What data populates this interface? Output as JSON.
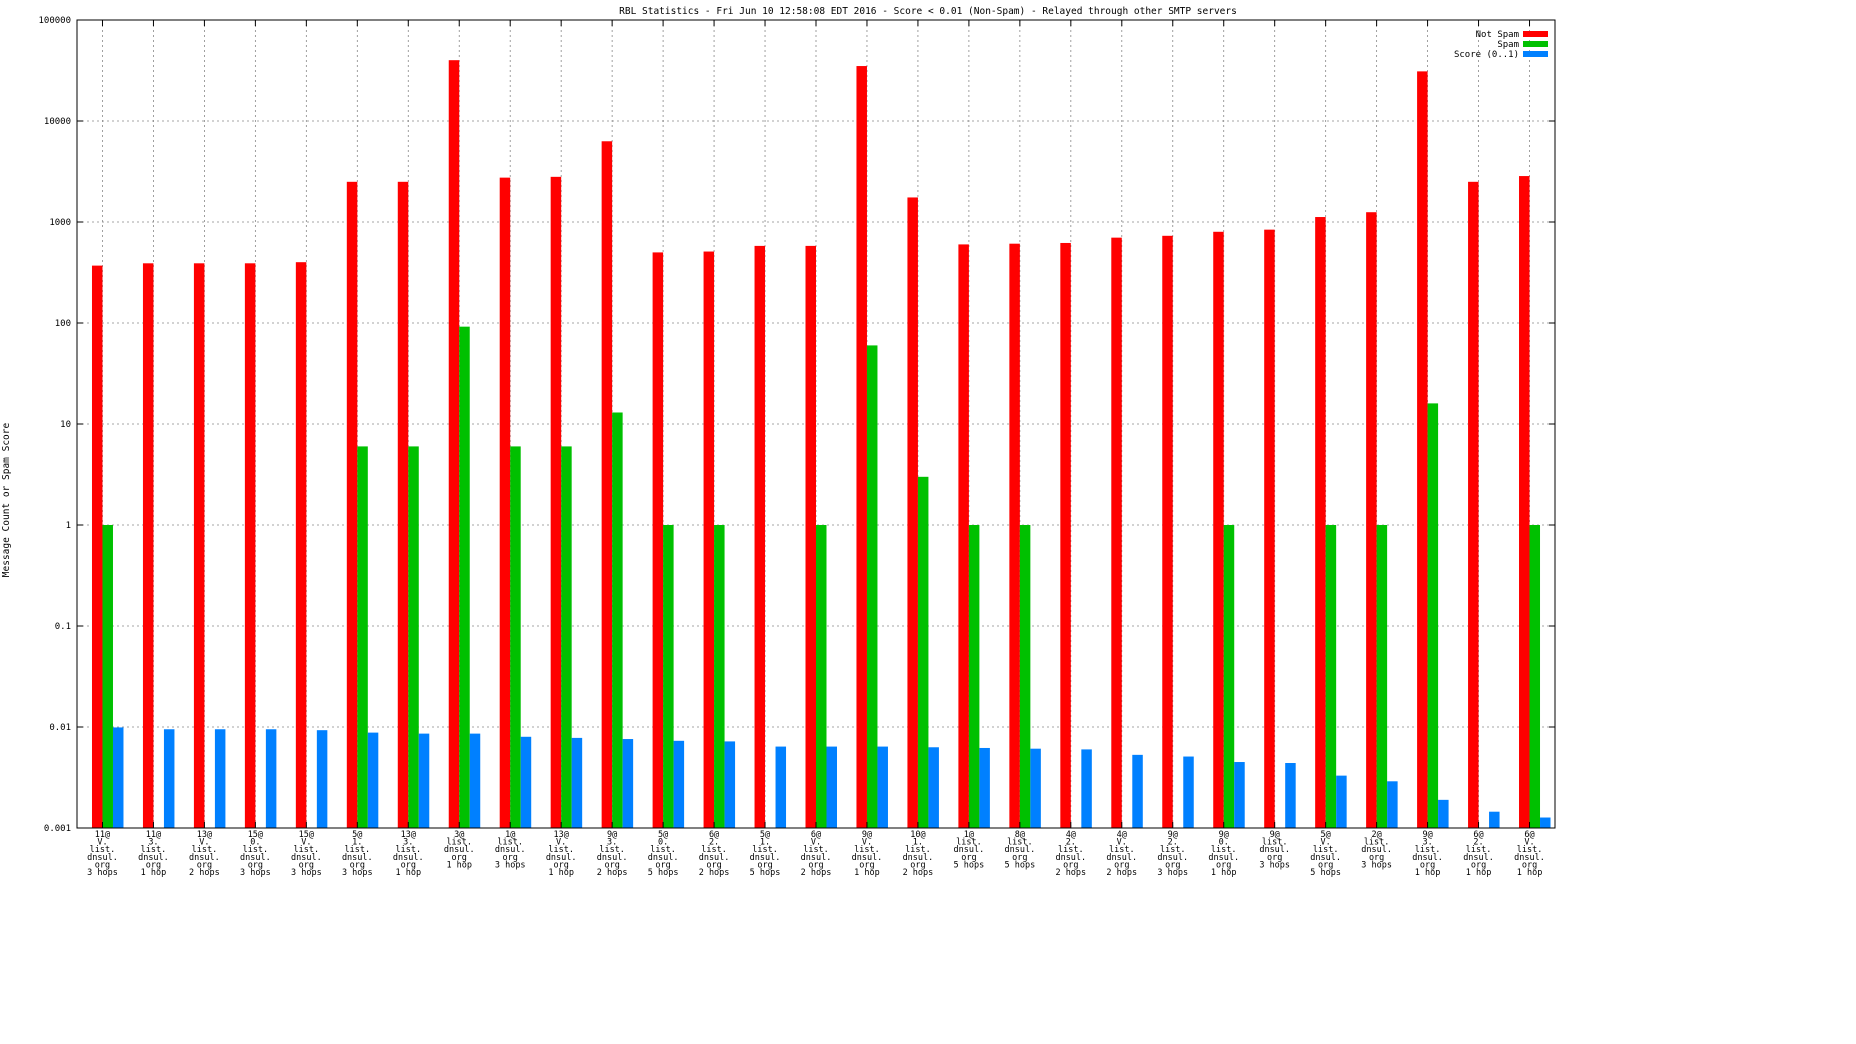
{
  "chart_data": {
    "type": "bar",
    "title": "RBL Statistics - Fri Jun 10 12:58:08 EDT 2016 - Score < 0.01 (Non-Spam) - Relayed through other SMTP servers",
    "xlabel": "",
    "ylabel": "Message Count or Spam Score",
    "yscale": "log",
    "ylim": [
      0.001,
      100000
    ],
    "yticks": [
      "0.001",
      "0.01",
      "0.1",
      "1",
      "10",
      "100",
      "1000",
      "10000",
      "100000"
    ],
    "grid": true,
    "legend_position": "top-right",
    "categories": [
      [
        "11@",
        "V.",
        "list.",
        "dnsul.",
        "org",
        "3 hops"
      ],
      [
        "11@",
        "3.",
        "list.",
        "dnsul.",
        "org",
        "1 hop"
      ],
      [
        "13@",
        "V.",
        "list.",
        "dnsul.",
        "org",
        "2 hops"
      ],
      [
        "15@",
        "0.",
        "list.",
        "dnsul.",
        "org",
        "3 hops"
      ],
      [
        "15@",
        "V.",
        "list.",
        "dnsul.",
        "org",
        "3 hops"
      ],
      [
        "5@",
        "1.",
        "list.",
        "dnsul.",
        "org",
        "3 hops"
      ],
      [
        "13@",
        "3.",
        "list.",
        "dnsul.",
        "org",
        "1 hop"
      ],
      [
        "3@",
        "list.",
        "dnsul.",
        "org",
        "1 hop"
      ],
      [
        "1@",
        "list.",
        "dnsul.",
        "org",
        "3 hops"
      ],
      [
        "13@",
        "V.",
        "list.",
        "dnsul.",
        "org",
        "1 hop"
      ],
      [
        "9@",
        "3.",
        "list.",
        "dnsul.",
        "org",
        "2 hops"
      ],
      [
        "5@",
        "0.",
        "list.",
        "dnsul.",
        "org",
        "5 hops"
      ],
      [
        "6@",
        "2.",
        "list.",
        "dnsul.",
        "org",
        "2 hops"
      ],
      [
        "5@",
        "1.",
        "list.",
        "dnsul.",
        "org",
        "5 hops"
      ],
      [
        "6@",
        "V.",
        "list.",
        "dnsul.",
        "org",
        "2 hops"
      ],
      [
        "9@",
        "V.",
        "list.",
        "dnsul.",
        "org",
        "1 hop"
      ],
      [
        "10@",
        "1.",
        "list.",
        "dnsul.",
        "org",
        "2 hops"
      ],
      [
        "1@",
        "list.",
        "dnsul.",
        "org",
        "5 hops"
      ],
      [
        "8@",
        "list.",
        "dnsul.",
        "org",
        "5 hops"
      ],
      [
        "4@",
        "2.",
        "list.",
        "dnsul.",
        "org",
        "2 hops"
      ],
      [
        "4@",
        "V.",
        "list.",
        "dnsul.",
        "org",
        "2 hops"
      ],
      [
        "9@",
        "2.",
        "list.",
        "dnsul.",
        "org",
        "3 hops"
      ],
      [
        "9@",
        "0.",
        "list.",
        "dnsul.",
        "org",
        "1 hop"
      ],
      [
        "9@",
        "list.",
        "dnsul.",
        "org",
        "3 hops"
      ],
      [
        "5@",
        "V.",
        "list.",
        "dnsul.",
        "org",
        "5 hops"
      ],
      [
        "2@",
        "list.",
        "dnsul.",
        "org",
        "3 hops"
      ],
      [
        "9@",
        "3.",
        "list.",
        "dnsul.",
        "org",
        "1 hop"
      ],
      [
        "6@",
        "2.",
        "list.",
        "dnsul.",
        "org",
        "1 hop"
      ],
      [
        "6@",
        "V.",
        "list.",
        "dnsul.",
        "org",
        "1 hop"
      ]
    ],
    "series": [
      {
        "name": "Not Spam",
        "color": "#ff0000",
        "values": [
          370,
          390,
          390,
          390,
          400,
          2500,
          2500,
          40000,
          2750,
          2800,
          6300,
          500,
          510,
          580,
          580,
          35000,
          1750,
          600,
          610,
          620,
          700,
          730,
          800,
          840,
          1120,
          1250,
          31000,
          2500,
          2850
        ]
      },
      {
        "name": "Spam",
        "color": "#00c000",
        "values": [
          1,
          null,
          null,
          null,
          null,
          6,
          6,
          92,
          6,
          6,
          13,
          1,
          1,
          null,
          1,
          60,
          3,
          1,
          1,
          null,
          null,
          null,
          1,
          null,
          1,
          1,
          16,
          null,
          1
        ]
      },
      {
        "name": "Score (0..1)",
        "color": "#0080ff",
        "values": [
          0.0099,
          0.0095,
          0.0095,
          0.0095,
          0.0093,
          0.0088,
          0.0086,
          0.0086,
          0.008,
          0.0078,
          0.0076,
          0.0073,
          0.0072,
          0.0064,
          0.0064,
          0.0064,
          0.0063,
          0.0062,
          0.0061,
          0.006,
          0.0053,
          0.0051,
          0.0045,
          0.0044,
          0.0033,
          0.0029,
          0.0019,
          0.00145,
          0.00127
        ]
      }
    ]
  }
}
